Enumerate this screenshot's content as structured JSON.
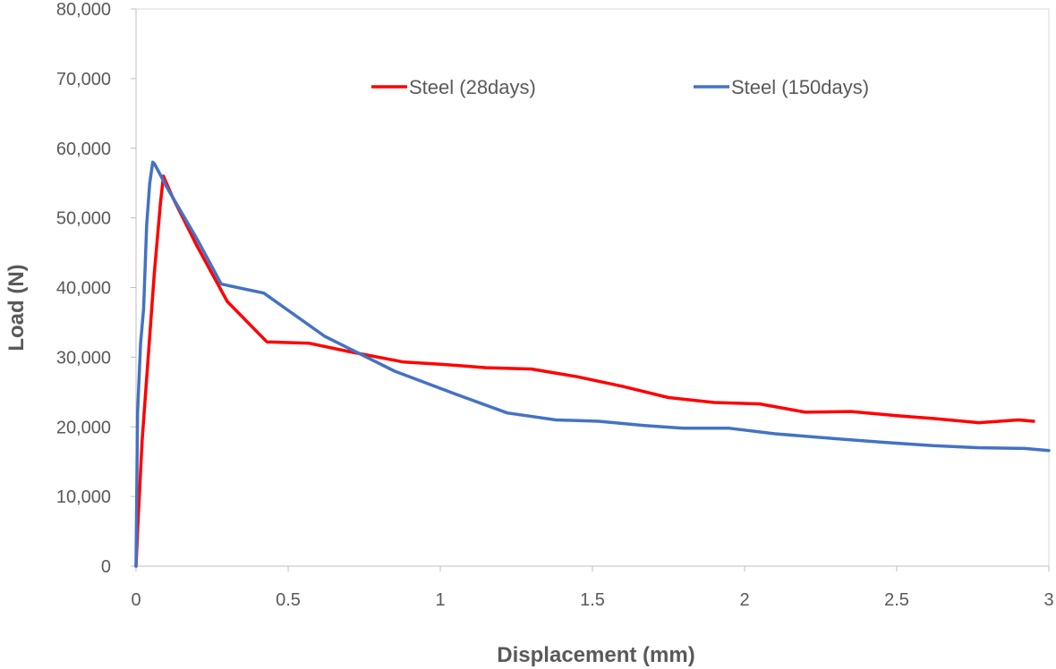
{
  "chart_data": {
    "type": "line",
    "title": "",
    "xlabel": "Displacement (mm)",
    "ylabel": "Load (N)",
    "xlim": [
      0,
      3
    ],
    "ylim": [
      0,
      80000
    ],
    "x_ticks": [
      "0",
      "0.5",
      "1",
      "1.5",
      "2",
      "2.5",
      "3"
    ],
    "x_tick_values": [
      0,
      0.5,
      1,
      1.5,
      2,
      2.5,
      3
    ],
    "y_ticks": [
      "0",
      "10,000",
      "20,000",
      "30,000",
      "40,000",
      "50,000",
      "60,000",
      "70,000",
      "80,000"
    ],
    "y_tick_values": [
      0,
      10000,
      20000,
      30000,
      40000,
      50000,
      60000,
      70000,
      80000
    ],
    "grid": false,
    "legend_position": "top-center",
    "series": [
      {
        "name": "Steel (28days)",
        "color": "#ff0000",
        "x": [
          0,
          0.005,
          0.02,
          0.04,
          0.06,
          0.08,
          0.09,
          0.12,
          0.2,
          0.3,
          0.43,
          0.57,
          0.7,
          0.88,
          1.0,
          1.15,
          1.3,
          1.45,
          1.6,
          1.75,
          1.9,
          2.05,
          2.2,
          2.35,
          2.5,
          2.62,
          2.77,
          2.9,
          2.95
        ],
        "y": [
          0,
          5000,
          18000,
          30000,
          42000,
          52000,
          56000,
          53000,
          46000,
          38000,
          32200,
          32000,
          30800,
          29300,
          29000,
          28500,
          28300,
          27200,
          25800,
          24200,
          23500,
          23300,
          22100,
          22200,
          21600,
          21200,
          20600,
          21000,
          20800
        ]
      },
      {
        "name": "Steel (150days)",
        "color": "#4472c4",
        "x": [
          0,
          0.005,
          0.015,
          0.025,
          0.03,
          0.035,
          0.045,
          0.055,
          0.06,
          0.07,
          0.1,
          0.2,
          0.28,
          0.42,
          0.62,
          0.85,
          1.05,
          1.22,
          1.38,
          1.52,
          1.67,
          1.8,
          1.95,
          2.1,
          2.3,
          2.45,
          2.62,
          2.77,
          2.92,
          3.0
        ],
        "y": [
          0,
          22000,
          32000,
          37000,
          43000,
          49000,
          55000,
          58000,
          57800,
          57000,
          54500,
          47000,
          40500,
          39200,
          33000,
          28000,
          24700,
          22000,
          21000,
          20800,
          20200,
          19800,
          19800,
          19000,
          18300,
          17800,
          17300,
          17000,
          16900,
          16600
        ]
      }
    ]
  }
}
